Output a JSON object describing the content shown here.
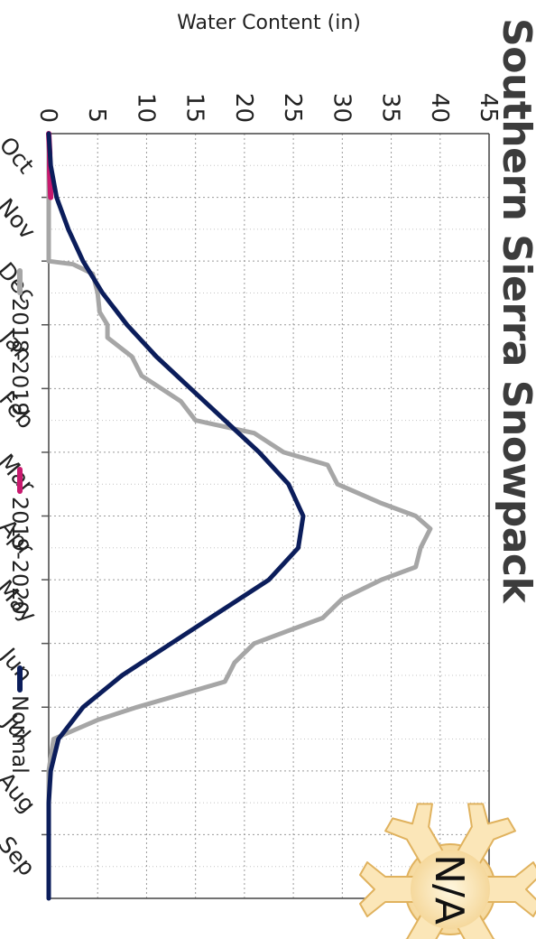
{
  "chart_data": {
    "type": "line",
    "title": "Southern Sierra Snowpack",
    "xlabel": "",
    "ylabel": "Water Content (in)",
    "ylim": [
      0,
      45
    ],
    "yticks": [
      0,
      5,
      10,
      15,
      20,
      25,
      30,
      35,
      40,
      45
    ],
    "categories": [
      "Oct",
      "Nov",
      "Dec",
      "Jan",
      "Feb",
      "Mar",
      "Apr",
      "May",
      "Jun",
      "Jul",
      "Aug",
      "Sep"
    ],
    "grid": true,
    "legend_placement": "bottom",
    "badge": "N/A",
    "series": [
      {
        "name": "2018-2019",
        "color": "#a6a6a6",
        "x": [
          0,
          0.5,
          1.0,
          1.5,
          2.0,
          2.05,
          2.2,
          2.5,
          2.8,
          3.0,
          3.2,
          3.5,
          3.8,
          4.0,
          4.2,
          4.5,
          4.7,
          5.0,
          5.2,
          5.5,
          5.8,
          6.0,
          6.2,
          6.5,
          6.8,
          7.0,
          7.3,
          7.6,
          8.0,
          8.3,
          8.6,
          9.0,
          9.2,
          9.5,
          10.0,
          11.0,
          12.0
        ],
        "values": [
          0,
          0,
          0,
          0,
          0,
          2.5,
          4.5,
          5.0,
          5.2,
          6.0,
          6.0,
          8.5,
          9.5,
          11.5,
          13.5,
          15.0,
          21.0,
          24.0,
          28.5,
          29.5,
          34.0,
          37.5,
          39.0,
          38.0,
          37.5,
          34.0,
          30.0,
          28.0,
          21.0,
          19.0,
          18.0,
          9.0,
          5.0,
          0.5,
          0,
          0,
          0
        ]
      },
      {
        "name": "2019-2020",
        "color": "#c8196e",
        "x": [
          0,
          0.3,
          0.6,
          1.0
        ],
        "values": [
          0,
          0.1,
          0.1,
          0.2
        ]
      },
      {
        "name": "Normal",
        "color": "#0b1d5b",
        "x": [
          0,
          0.5,
          1.0,
          1.5,
          2.0,
          2.5,
          3.0,
          3.5,
          4.0,
          4.5,
          5.0,
          5.5,
          6.0,
          6.5,
          7.0,
          7.5,
          8.0,
          8.5,
          9.0,
          9.5,
          10.0,
          10.5,
          11.0,
          12.0
        ],
        "values": [
          0,
          0.2,
          0.8,
          2.0,
          3.5,
          5.5,
          8.0,
          11.0,
          14.5,
          18.0,
          21.5,
          24.5,
          26.0,
          25.5,
          22.5,
          17.5,
          12.5,
          7.5,
          3.5,
          1.0,
          0.2,
          0,
          0,
          0
        ]
      }
    ]
  }
}
